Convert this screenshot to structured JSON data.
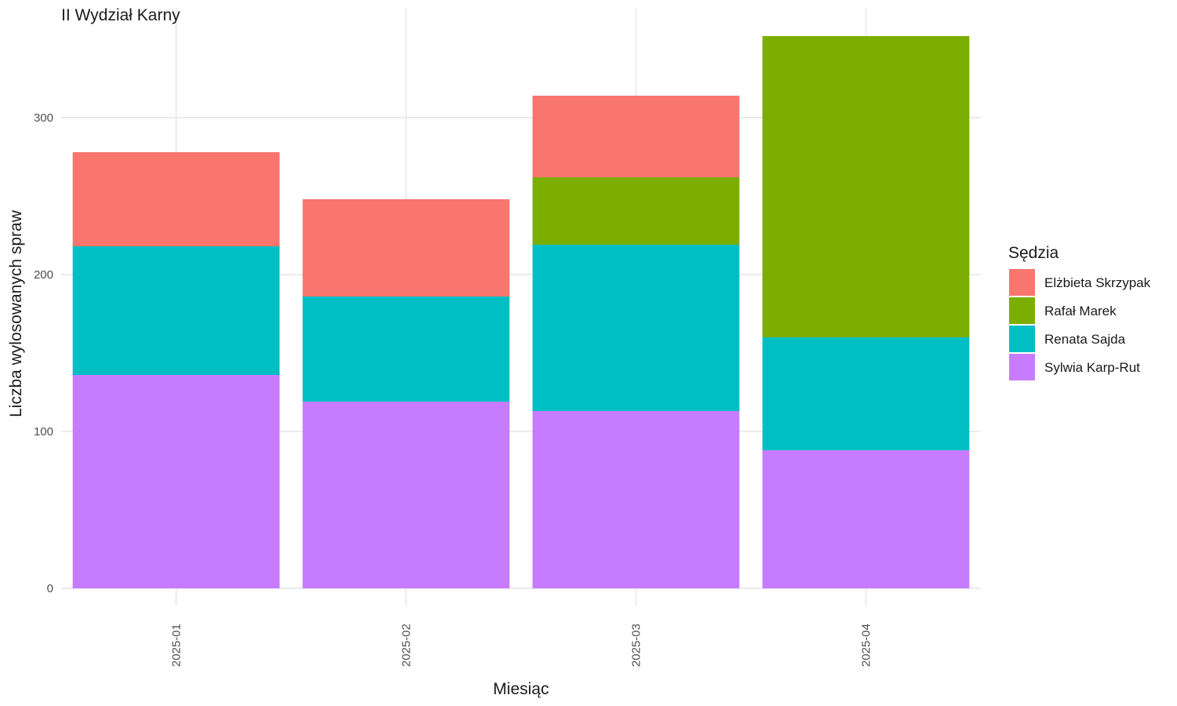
{
  "chart_data": {
    "type": "bar",
    "stacked": true,
    "title": "II Wydział Karny",
    "xlabel": "Miesiąc",
    "ylabel": "Liczba wylosowanych spraw",
    "categories": [
      "2025-01",
      "2025-02",
      "2025-03",
      "2025-04"
    ],
    "ylim": [
      0,
      352
    ],
    "yticks": [
      0,
      100,
      200,
      300
    ],
    "grid": true,
    "legend": {
      "title": "Sędzia",
      "position": "right"
    },
    "series": [
      {
        "name": "Elżbieta Skrzypak",
        "color": "#F8766D",
        "values": [
          60,
          62,
          52,
          0
        ]
      },
      {
        "name": "Rafał Marek",
        "color": "#7CAE00",
        "values": [
          0,
          0,
          43,
          192
        ]
      },
      {
        "name": "Renata Sajda",
        "color": "#00BFC4",
        "values": [
          82,
          67,
          106,
          72
        ]
      },
      {
        "name": "Sylwia Karp-Rut",
        "color": "#C77CFF",
        "values": [
          136,
          119,
          113,
          88
        ]
      }
    ]
  }
}
